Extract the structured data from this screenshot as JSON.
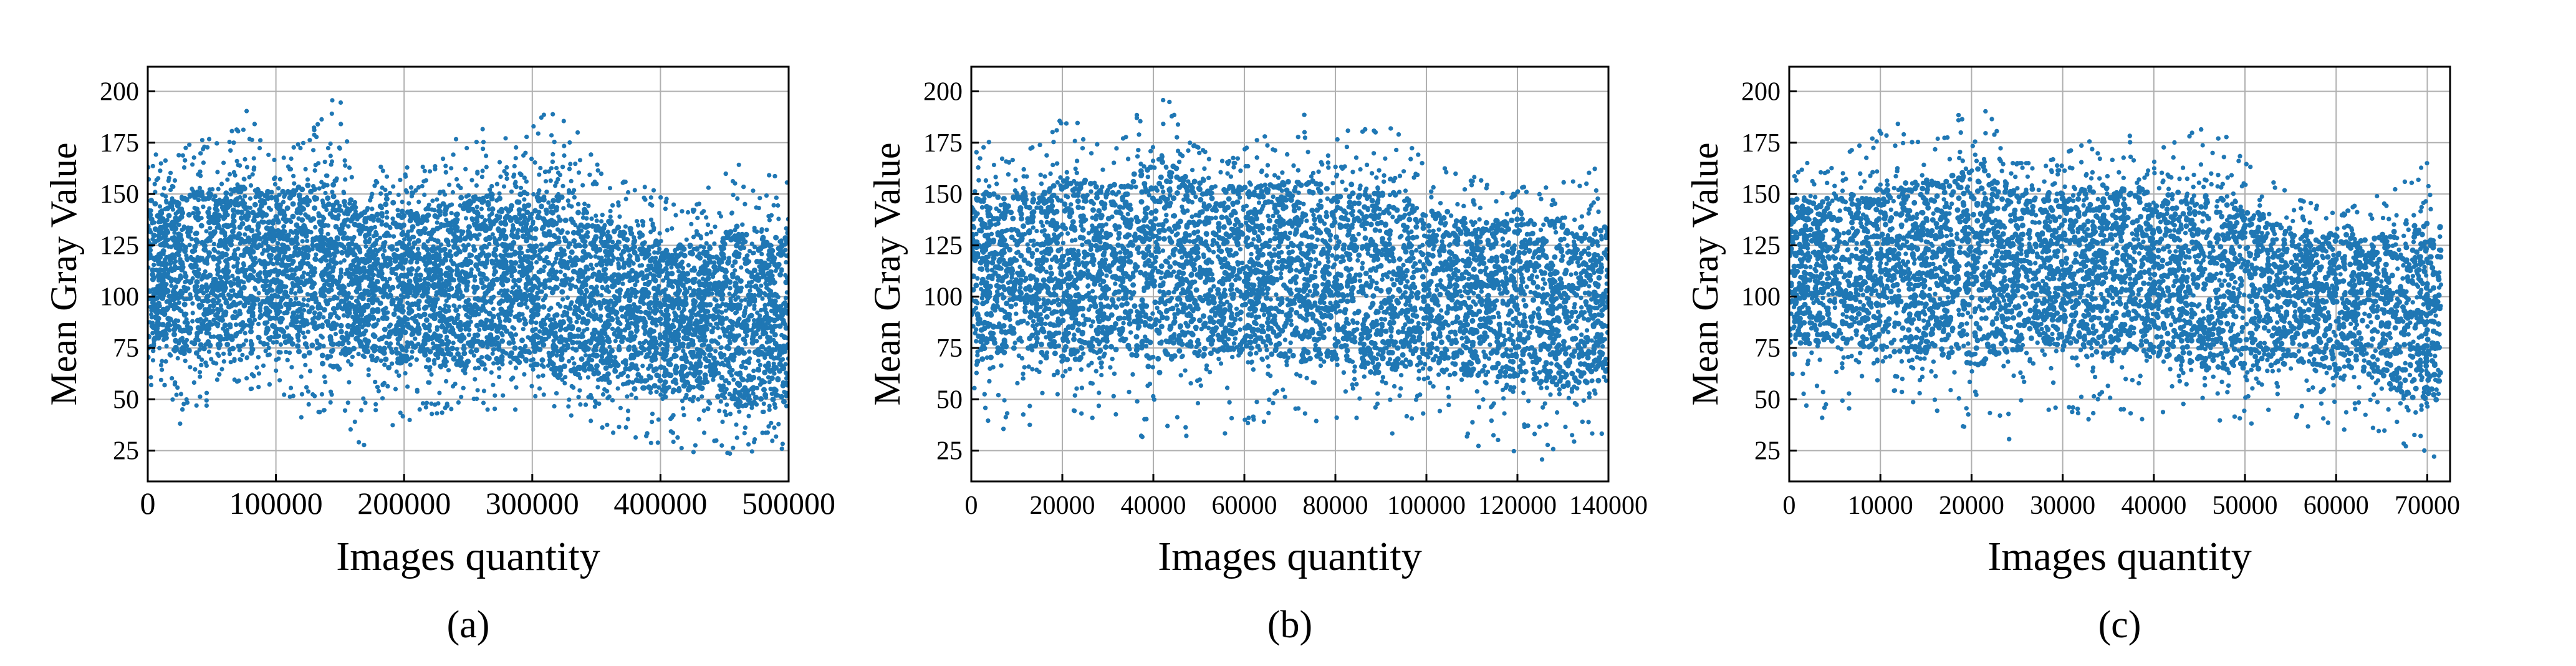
{
  "chart_data": [
    {
      "type": "scatter",
      "caption": "(a)",
      "xlabel": "Images quantity",
      "ylabel": "Mean Gray Value",
      "xlim": [
        0,
        500000
      ],
      "ylim": [
        10,
        212
      ],
      "x_ticks": [
        0,
        100000,
        200000,
        300000,
        400000,
        500000
      ],
      "y_ticks": [
        25,
        50,
        75,
        100,
        125,
        150,
        175,
        200
      ],
      "grid": true,
      "color": "#1f77b4",
      "series": [
        {
          "envelope": [
            {
              "x": 0,
              "lo": 42,
              "hi": 180
            },
            {
              "x": 10000,
              "lo": 60,
              "hi": 165
            },
            {
              "x": 25000,
              "lo": 38,
              "hi": 170
            },
            {
              "x": 40000,
              "lo": 45,
              "hi": 178
            },
            {
              "x": 60000,
              "lo": 50,
              "hi": 175
            },
            {
              "x": 80000,
              "lo": 55,
              "hi": 195
            },
            {
              "x": 100000,
              "lo": 58,
              "hi": 175
            },
            {
              "x": 120000,
              "lo": 40,
              "hi": 178
            },
            {
              "x": 150000,
              "lo": 48,
              "hi": 203
            },
            {
              "x": 165000,
              "lo": 25,
              "hi": 130
            },
            {
              "x": 185000,
              "lo": 30,
              "hi": 170
            },
            {
              "x": 210000,
              "lo": 42,
              "hi": 160
            },
            {
              "x": 250000,
              "lo": 45,
              "hi": 188
            },
            {
              "x": 280000,
              "lo": 45,
              "hi": 182
            },
            {
              "x": 320000,
              "lo": 45,
              "hi": 196
            },
            {
              "x": 345000,
              "lo": 38,
              "hi": 170
            },
            {
              "x": 360000,
              "lo": 22,
              "hi": 155
            },
            {
              "x": 380000,
              "lo": 30,
              "hi": 160
            },
            {
              "x": 400000,
              "lo": 28,
              "hi": 150
            },
            {
              "x": 420000,
              "lo": 22,
              "hi": 140
            },
            {
              "x": 440000,
              "lo": 30,
              "hi": 155
            },
            {
              "x": 460000,
              "lo": 20,
              "hi": 170
            },
            {
              "x": 480000,
              "lo": 28,
              "hi": 160
            },
            {
              "x": 500000,
              "lo": 25,
              "hi": 165
            }
          ],
          "center": [
            {
              "x": 0,
              "y": 110
            },
            {
              "x": 100000,
              "y": 115
            },
            {
              "x": 200000,
              "y": 105
            },
            {
              "x": 300000,
              "y": 110
            },
            {
              "x": 400000,
              "y": 90
            },
            {
              "x": 500000,
              "y": 90
            }
          ]
        }
      ]
    },
    {
      "type": "scatter",
      "caption": "(b)",
      "xlabel": "Images quantity",
      "ylabel": "Mean Gray Value",
      "xlim": [
        0,
        140000
      ],
      "ylim": [
        10,
        212
      ],
      "x_ticks": [
        0,
        20000,
        40000,
        60000,
        80000,
        100000,
        120000,
        140000
      ],
      "y_ticks": [
        25,
        50,
        75,
        100,
        125,
        150,
        175,
        200
      ],
      "grid": true,
      "color": "#1f77b4",
      "series": [
        {
          "envelope": [
            {
              "x": 0,
              "lo": 40,
              "hi": 185
            },
            {
              "x": 8000,
              "lo": 35,
              "hi": 165
            },
            {
              "x": 15000,
              "lo": 38,
              "hi": 175
            },
            {
              "x": 22000,
              "lo": 45,
              "hi": 197
            },
            {
              "x": 30000,
              "lo": 38,
              "hi": 172
            },
            {
              "x": 42000,
              "lo": 28,
              "hi": 203
            },
            {
              "x": 48000,
              "lo": 30,
              "hi": 175
            },
            {
              "x": 56000,
              "lo": 28,
              "hi": 165
            },
            {
              "x": 65000,
              "lo": 40,
              "hi": 180
            },
            {
              "x": 72000,
              "lo": 40,
              "hi": 190
            },
            {
              "x": 80000,
              "lo": 38,
              "hi": 180
            },
            {
              "x": 90000,
              "lo": 30,
              "hi": 188
            },
            {
              "x": 100000,
              "lo": 35,
              "hi": 165
            },
            {
              "x": 110000,
              "lo": 28,
              "hi": 160
            },
            {
              "x": 116000,
              "lo": 22,
              "hi": 150
            },
            {
              "x": 124000,
              "lo": 18,
              "hi": 155
            },
            {
              "x": 132000,
              "lo": 25,
              "hi": 160
            },
            {
              "x": 140000,
              "lo": 35,
              "hi": 165
            }
          ],
          "center": [
            {
              "x": 0,
              "y": 110
            },
            {
              "x": 40000,
              "y": 115
            },
            {
              "x": 80000,
              "y": 112
            },
            {
              "x": 110000,
              "y": 100
            },
            {
              "x": 140000,
              "y": 95
            }
          ]
        }
      ]
    },
    {
      "type": "scatter",
      "caption": "(c)",
      "xlabel": "Images quantity",
      "ylabel": "Mean Gray Value",
      "xlim": [
        0,
        72500
      ],
      "ylim": [
        10,
        212
      ],
      "x_ticks": [
        0,
        10000,
        20000,
        30000,
        40000,
        50000,
        60000,
        70000
      ],
      "y_ticks": [
        25,
        50,
        75,
        100,
        125,
        150,
        175,
        200
      ],
      "grid": true,
      "color": "#1f77b4",
      "series": [
        {
          "envelope": [
            {
              "x": 0,
              "lo": 50,
              "hi": 170
            },
            {
              "x": 4000,
              "lo": 40,
              "hi": 160
            },
            {
              "x": 9000,
              "lo": 50,
              "hi": 180
            },
            {
              "x": 12000,
              "lo": 55,
              "hi": 192
            },
            {
              "x": 17000,
              "lo": 35,
              "hi": 180
            },
            {
              "x": 21000,
              "lo": 38,
              "hi": 203
            },
            {
              "x": 24000,
              "lo": 28,
              "hi": 165
            },
            {
              "x": 28000,
              "lo": 40,
              "hi": 165
            },
            {
              "x": 35000,
              "lo": 40,
              "hi": 180
            },
            {
              "x": 42000,
              "lo": 40,
              "hi": 175
            },
            {
              "x": 46000,
              "lo": 45,
              "hi": 190
            },
            {
              "x": 50000,
              "lo": 28,
              "hi": 165
            },
            {
              "x": 55000,
              "lo": 40,
              "hi": 150
            },
            {
              "x": 60000,
              "lo": 30,
              "hi": 140
            },
            {
              "x": 64000,
              "lo": 35,
              "hi": 150
            },
            {
              "x": 68000,
              "lo": 22,
              "hi": 165
            },
            {
              "x": 71500,
              "lo": 22,
              "hi": 165
            }
          ],
          "center": [
            {
              "x": 0,
              "y": 112
            },
            {
              "x": 20000,
              "y": 115
            },
            {
              "x": 40000,
              "y": 112
            },
            {
              "x": 56000,
              "y": 100
            },
            {
              "x": 71500,
              "y": 92
            }
          ]
        }
      ]
    }
  ]
}
